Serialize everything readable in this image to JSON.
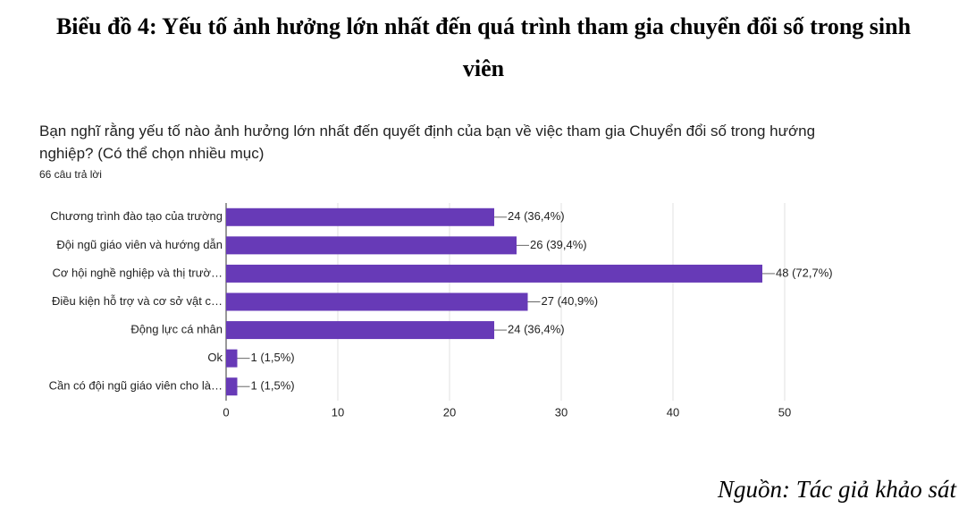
{
  "heading": "Biểu đồ 4: Yếu tố ảnh hưởng lớn nhất đến quá trình tham gia chuyển đổi số trong sinh viên",
  "chart_data": {
    "type": "bar",
    "orientation": "horizontal",
    "title": "Bạn nghĩ rằng yếu tố nào ảnh hưởng lớn nhất đến quyết định của bạn về việc tham gia Chuyển đổi số trong hướng nghiệp? (Có thể chọn nhiều mục)",
    "subtitle": "66 câu trả lời",
    "categories": [
      "Chương trình đào tạo của trường",
      "Đội ngũ giáo viên và hướng dẫn",
      "Cơ hội nghề nghiệp và thị trườ…",
      "Điều kiện hỗ trợ và cơ sở vật c…",
      "Động lực cá nhân",
      "Ok",
      "Cần có đội ngũ giáo viên cho là…"
    ],
    "values": [
      24,
      26,
      48,
      27,
      24,
      1,
      1
    ],
    "value_labels": [
      "24 (36,4%)",
      "26 (39,4%)",
      "48 (72,7%)",
      "27 (40,9%)",
      "24 (36,4%)",
      "1 (1,5%)",
      "1 (1,5%)"
    ],
    "color": "#673ab7",
    "xlim": [
      0,
      50
    ],
    "xticks": [
      0,
      10,
      20,
      30,
      40,
      50
    ],
    "grid": true
  },
  "source": "Nguồn: Tác giả khảo sát"
}
